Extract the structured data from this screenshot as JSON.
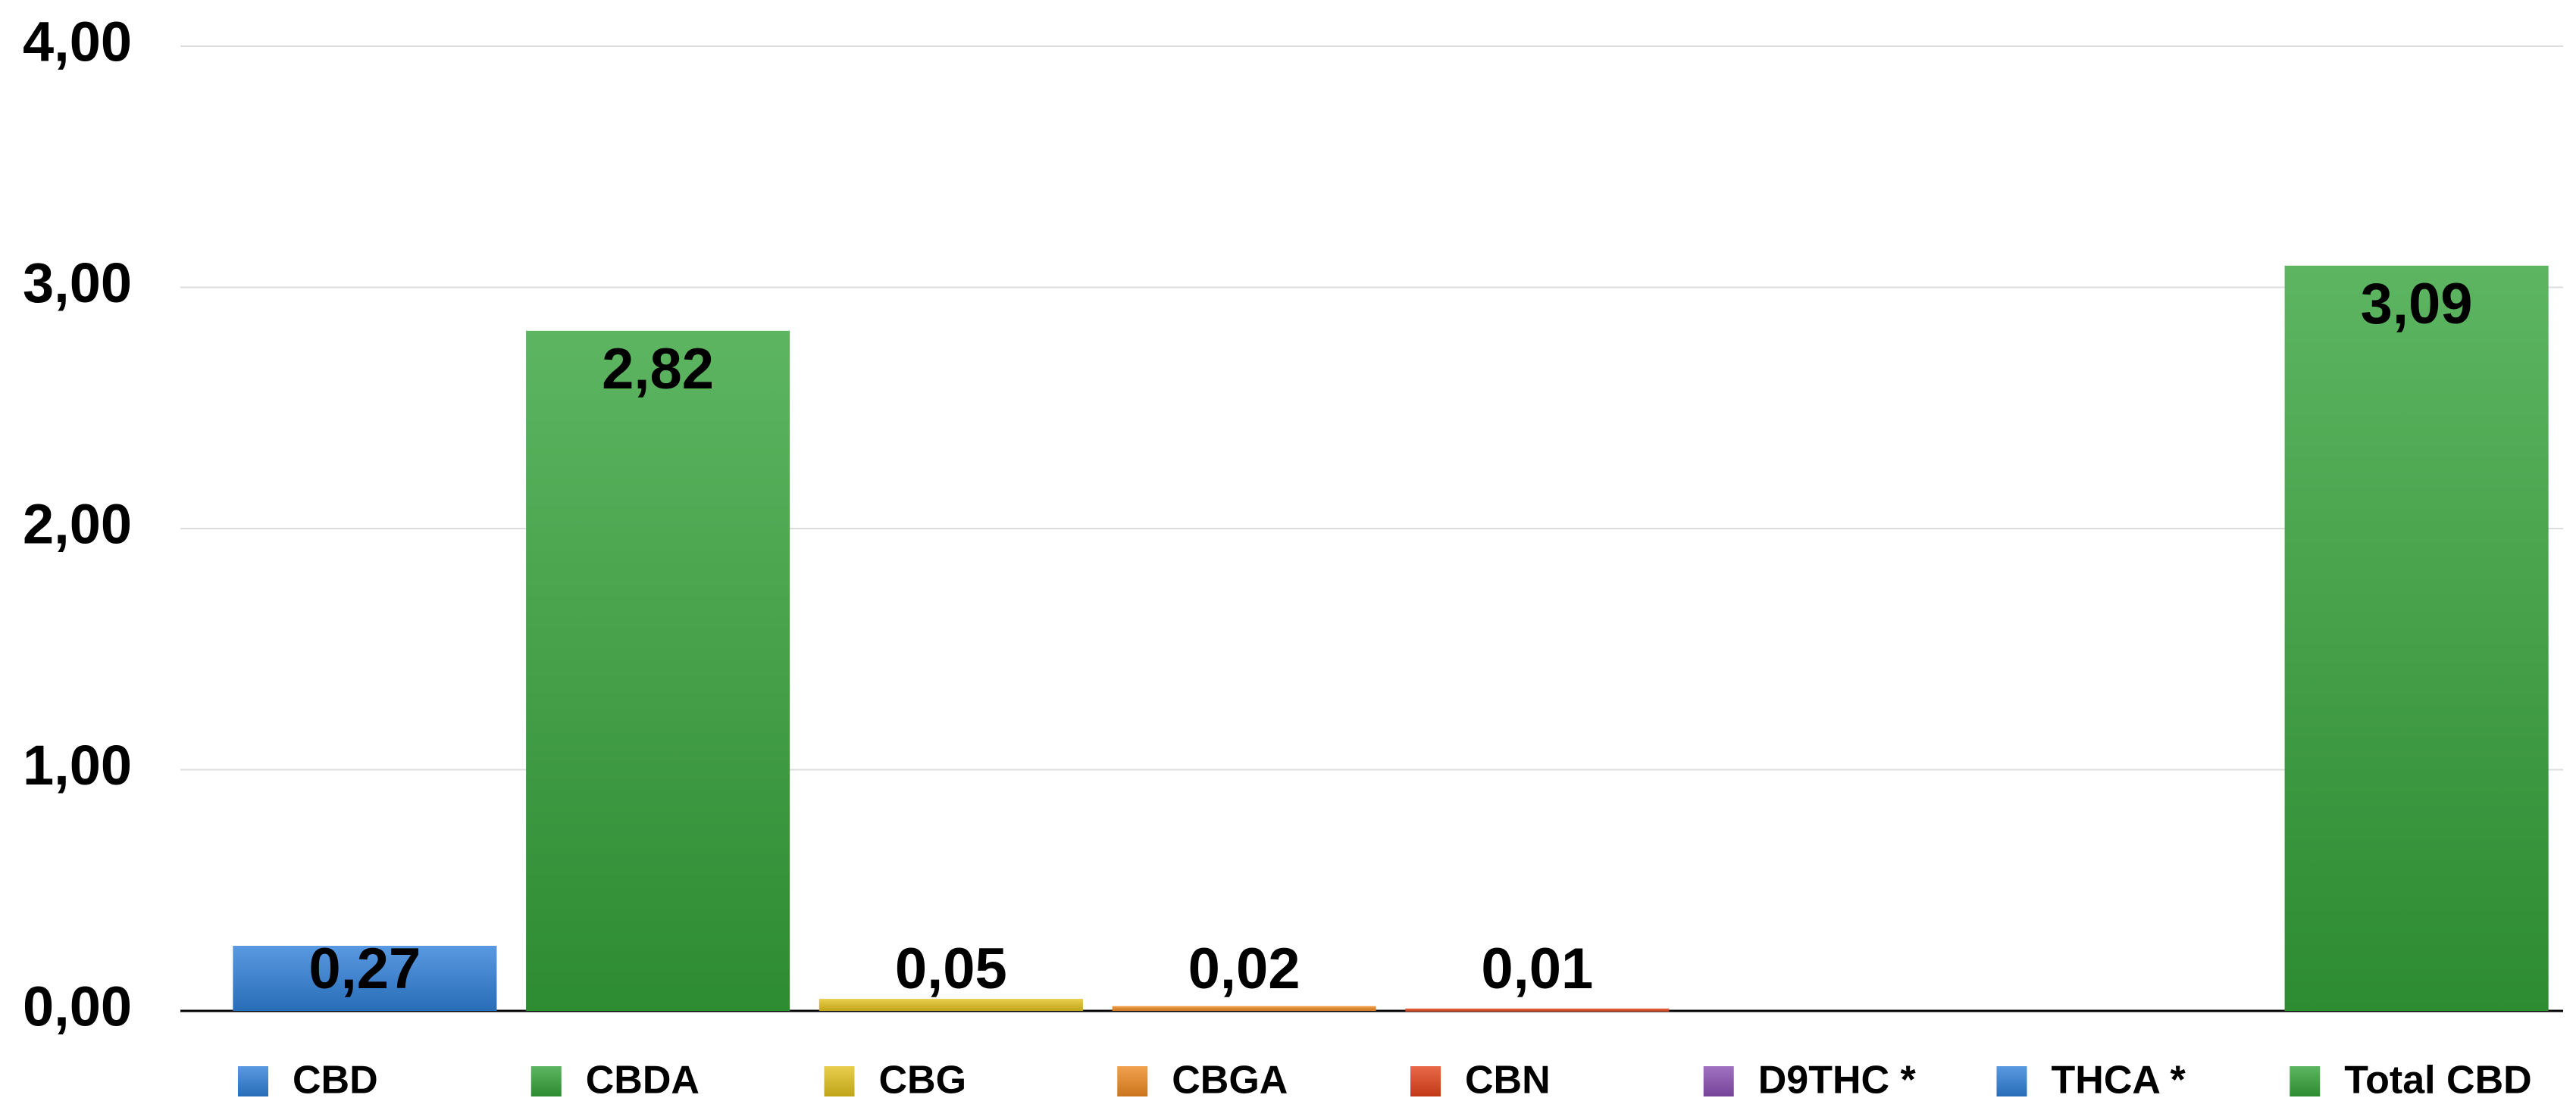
{
  "chart_data": {
    "type": "bar",
    "categories": [
      "CBD",
      "CBDA",
      "CBG",
      "CBGA",
      "CBN",
      "D9THC *",
      "THCA *",
      "Total CBD"
    ],
    "values": [
      0.27,
      2.82,
      0.05,
      0.02,
      0.01,
      null,
      null,
      3.09
    ],
    "value_labels": [
      "0,27",
      "2,82",
      "0,05",
      "0,02",
      "0,01",
      null,
      null,
      "3,09"
    ],
    "colors": [
      "#2f80d9",
      "#35a33a",
      "#e2c21f",
      "#ef8a22",
      "#e4431b",
      "#8a4fb3",
      "#2f80d9",
      "#35a33a"
    ],
    "ylim": [
      0,
      4
    ],
    "yticks": [
      {
        "value": 0,
        "label": "0,00"
      },
      {
        "value": 1,
        "label": "1,00"
      },
      {
        "value": 2,
        "label": "2,00"
      },
      {
        "value": 3,
        "label": "3,00"
      },
      {
        "value": 4,
        "label": "4,00"
      }
    ],
    "grid": true,
    "legend": "bottom"
  }
}
